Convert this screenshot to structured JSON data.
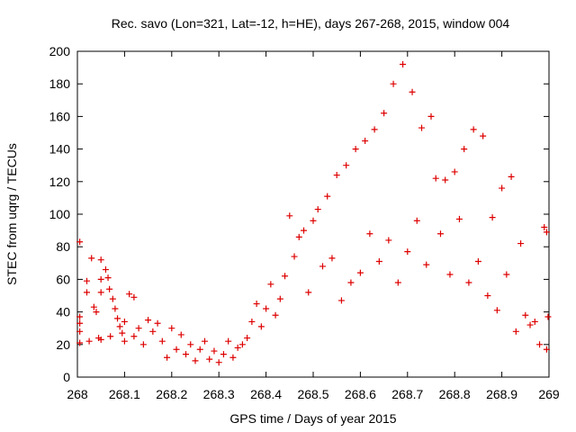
{
  "chart_data": {
    "type": "scatter",
    "title": "Rec. savo (Lon=321, Lat=-12, h=HE), days 267-268, 2015, window 004",
    "xlabel": "GPS time / Days of year 2015",
    "ylabel": "STEC from uqrg / TECUs",
    "xlim": [
      268,
      269
    ],
    "ylim": [
      0,
      200
    ],
    "grid": false,
    "marker": "plus",
    "marker_color": "#dd0000",
    "x_ticks": [
      "268",
      "268.1",
      "268.2",
      "268.3",
      "268.4",
      "268.5",
      "268.6",
      "268.7",
      "268.8",
      "268.9",
      "269"
    ],
    "y_ticks": [
      "0",
      "20",
      "40",
      "60",
      "80",
      "100",
      "120",
      "140",
      "160",
      "180",
      "200"
    ],
    "series": [
      {
        "name": "STEC",
        "points": [
          [
            268.005,
            83
          ],
          [
            268.005,
            37
          ],
          [
            268.005,
            33
          ],
          [
            268.005,
            28
          ],
          [
            268.005,
            21
          ],
          [
            268.02,
            59
          ],
          [
            268.02,
            52
          ],
          [
            268.025,
            22
          ],
          [
            268.03,
            73
          ],
          [
            268.035,
            43
          ],
          [
            268.04,
            40
          ],
          [
            268.045,
            24
          ],
          [
            268.05,
            72
          ],
          [
            268.05,
            60
          ],
          [
            268.05,
            52
          ],
          [
            268.05,
            23
          ],
          [
            268.06,
            66
          ],
          [
            268.065,
            61
          ],
          [
            268.068,
            54
          ],
          [
            268.07,
            25
          ],
          [
            268.075,
            48
          ],
          [
            268.08,
            42
          ],
          [
            268.085,
            36
          ],
          [
            268.09,
            31
          ],
          [
            268.095,
            27
          ],
          [
            268.1,
            34
          ],
          [
            268.1,
            22
          ],
          [
            268.11,
            51
          ],
          [
            268.12,
            49
          ],
          [
            268.12,
            25
          ],
          [
            268.13,
            30
          ],
          [
            268.14,
            20
          ],
          [
            268.15,
            35
          ],
          [
            268.16,
            28
          ],
          [
            268.17,
            33
          ],
          [
            268.18,
            22
          ],
          [
            268.19,
            12
          ],
          [
            268.2,
            30
          ],
          [
            268.21,
            17
          ],
          [
            268.22,
            26
          ],
          [
            268.23,
            14
          ],
          [
            268.24,
            20
          ],
          [
            268.25,
            10
          ],
          [
            268.26,
            17
          ],
          [
            268.27,
            22
          ],
          [
            268.28,
            11
          ],
          [
            268.29,
            16
          ],
          [
            268.3,
            9
          ],
          [
            268.31,
            14
          ],
          [
            268.32,
            22
          ],
          [
            268.33,
            12
          ],
          [
            268.34,
            18
          ],
          [
            268.35,
            20
          ],
          [
            268.36,
            24
          ],
          [
            268.37,
            34
          ],
          [
            268.38,
            45
          ],
          [
            268.39,
            31
          ],
          [
            268.4,
            42
          ],
          [
            268.41,
            57
          ],
          [
            268.42,
            38
          ],
          [
            268.43,
            48
          ],
          [
            268.44,
            62
          ],
          [
            268.45,
            99
          ],
          [
            268.46,
            74
          ],
          [
            268.47,
            86
          ],
          [
            268.48,
            90
          ],
          [
            268.49,
            52
          ],
          [
            268.5,
            96
          ],
          [
            268.51,
            103
          ],
          [
            268.52,
            68
          ],
          [
            268.53,
            111
          ],
          [
            268.54,
            73
          ],
          [
            268.55,
            124
          ],
          [
            268.56,
            47
          ],
          [
            268.57,
            130
          ],
          [
            268.58,
            58
          ],
          [
            268.59,
            140
          ],
          [
            268.6,
            64
          ],
          [
            268.61,
            145
          ],
          [
            268.62,
            88
          ],
          [
            268.63,
            152
          ],
          [
            268.64,
            71
          ],
          [
            268.65,
            162
          ],
          [
            268.66,
            84
          ],
          [
            268.67,
            180
          ],
          [
            268.68,
            58
          ],
          [
            268.69,
            192
          ],
          [
            268.7,
            77
          ],
          [
            268.71,
            175
          ],
          [
            268.72,
            96
          ],
          [
            268.73,
            153
          ],
          [
            268.74,
            69
          ],
          [
            268.75,
            160
          ],
          [
            268.76,
            122
          ],
          [
            268.77,
            88
          ],
          [
            268.78,
            121
          ],
          [
            268.79,
            63
          ],
          [
            268.8,
            126
          ],
          [
            268.81,
            97
          ],
          [
            268.82,
            140
          ],
          [
            268.83,
            58
          ],
          [
            268.84,
            152
          ],
          [
            268.85,
            71
          ],
          [
            268.86,
            148
          ],
          [
            268.87,
            50
          ],
          [
            268.88,
            98
          ],
          [
            268.89,
            41
          ],
          [
            268.9,
            116
          ],
          [
            268.91,
            63
          ],
          [
            268.92,
            123
          ],
          [
            268.93,
            28
          ],
          [
            268.94,
            82
          ],
          [
            268.95,
            38
          ],
          [
            268.96,
            32
          ],
          [
            268.97,
            34
          ],
          [
            268.98,
            20
          ],
          [
            268.99,
            92
          ],
          [
            268.995,
            89
          ],
          [
            268.998,
            37
          ],
          [
            268.995,
            17
          ]
        ]
      }
    ]
  }
}
